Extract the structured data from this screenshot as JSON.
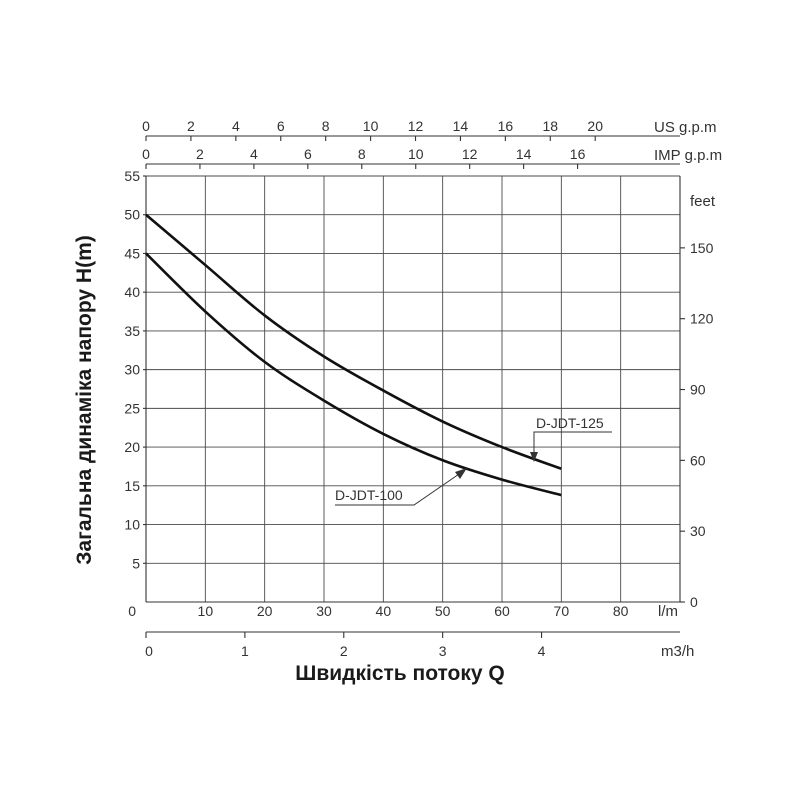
{
  "chart_data": {
    "type": "line",
    "x": {
      "label": "l/m",
      "min": 0,
      "max": 90,
      "ticks": [
        0,
        10,
        20,
        30,
        40,
        50,
        60,
        70,
        80
      ]
    },
    "y": {
      "label": "Загальна динаміка напору H(m)",
      "min": 0,
      "max": 55,
      "ticks": [
        5,
        10,
        15,
        20,
        25,
        30,
        35,
        40,
        45,
        50,
        55
      ],
      "zero_label": "0"
    },
    "y_right": {
      "label": "feet",
      "ticks": [
        0,
        30,
        60,
        90,
        120,
        150
      ]
    },
    "top_axes": [
      {
        "label": "US g.p.m",
        "ticks": [
          0,
          2,
          4,
          6,
          8,
          10,
          12,
          14,
          16,
          18,
          20
        ]
      },
      {
        "label": "IMP g.p.m",
        "ticks": [
          0,
          2,
          4,
          6,
          8,
          10,
          12,
          14,
          16
        ]
      }
    ],
    "bottom_axis2": {
      "label": "m3/h",
      "ticks": [
        0,
        1,
        2,
        3,
        4
      ]
    },
    "xlabel": "Швидкість потоку Q",
    "grid": true,
    "series": [
      {
        "name": "D-JDT-125",
        "x": [
          0,
          10,
          20,
          30,
          40,
          50,
          60,
          70
        ],
        "y": [
          50,
          43.5,
          37,
          31.7,
          27.3,
          23.3,
          20,
          17.2
        ]
      },
      {
        "name": "D-JDT-100",
        "x": [
          0,
          10,
          20,
          30,
          40,
          50,
          60,
          70
        ],
        "y": [
          45,
          37.5,
          31,
          26,
          21.7,
          18.3,
          15.8,
          13.8
        ]
      }
    ]
  }
}
